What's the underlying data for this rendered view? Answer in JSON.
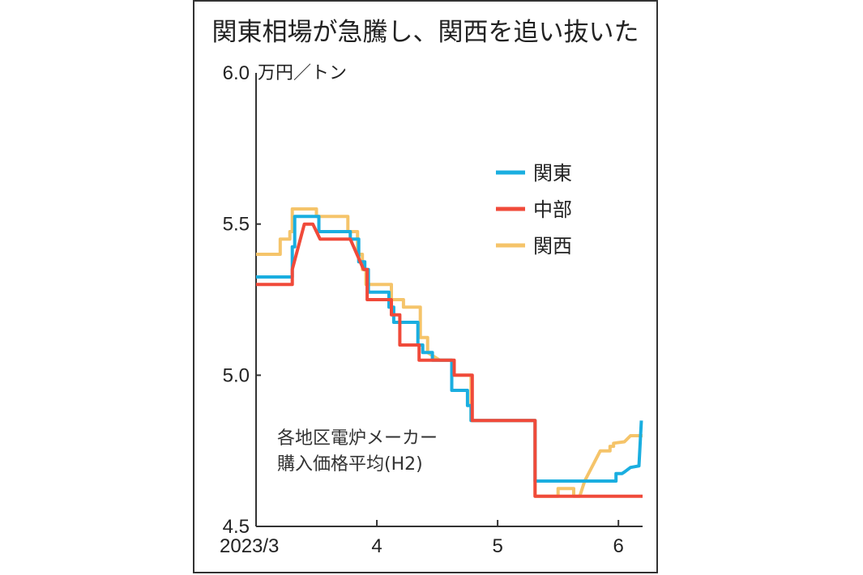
{
  "title": "関東相場が急騰し、関西を追い抜いた",
  "annotation_lines": [
    "各地区電炉メーカー",
    "購入価格平均(H2)"
  ],
  "chart_data": {
    "type": "line",
    "title": "関東相場が急騰し、関西を追い抜いた",
    "ylabel": "万円／トン",
    "xlabel": "",
    "ylim": [
      4.5,
      6.0
    ],
    "xlim": [
      0,
      3.2
    ],
    "y_ticks": [
      "6.0",
      "5.5",
      "5.0",
      "4.5"
    ],
    "y_tick_values": [
      6.0,
      5.5,
      5.0,
      4.5
    ],
    "x_ticks": [
      "2023/3",
      "4",
      "5",
      "6"
    ],
    "x_tick_values": [
      0,
      1,
      2,
      3
    ],
    "grid": false,
    "legend_position": "upper-right",
    "series": [
      {
        "name": "関東",
        "color": "#1aaee0",
        "points": [
          [
            0,
            5.325
          ],
          [
            0.3,
            5.325
          ],
          [
            0.3,
            5.425
          ],
          [
            0.32,
            5.425
          ],
          [
            0.32,
            5.525
          ],
          [
            0.52,
            5.525
          ],
          [
            0.52,
            5.475
          ],
          [
            0.78,
            5.475
          ],
          [
            0.78,
            5.45
          ],
          [
            0.85,
            5.45
          ],
          [
            0.85,
            5.375
          ],
          [
            0.9,
            5.375
          ],
          [
            0.9,
            5.35
          ],
          [
            0.93,
            5.35
          ],
          [
            0.93,
            5.275
          ],
          [
            1.1,
            5.275
          ],
          [
            1.1,
            5.225
          ],
          [
            1.14,
            5.225
          ],
          [
            1.14,
            5.175
          ],
          [
            1.34,
            5.175
          ],
          [
            1.34,
            5.1
          ],
          [
            1.38,
            5.1
          ],
          [
            1.38,
            5.075
          ],
          [
            1.46,
            5.075
          ],
          [
            1.46,
            5.05
          ],
          [
            1.62,
            5.05
          ],
          [
            1.62,
            4.95
          ],
          [
            1.75,
            4.95
          ],
          [
            1.75,
            4.9
          ],
          [
            1.78,
            4.9
          ],
          [
            1.78,
            4.85
          ],
          [
            2.31,
            4.85
          ],
          [
            2.31,
            4.65
          ],
          [
            2.98,
            4.65
          ],
          [
            2.98,
            4.675
          ],
          [
            3.03,
            4.675
          ],
          [
            3.05,
            4.68
          ],
          [
            3.1,
            4.695
          ],
          [
            3.17,
            4.7
          ],
          [
            3.19,
            4.85
          ]
        ]
      },
      {
        "name": "中部",
        "color": "#f04a3a",
        "points": [
          [
            0,
            5.3
          ],
          [
            0.3,
            5.3
          ],
          [
            0.3,
            5.35
          ],
          [
            0.4,
            5.5
          ],
          [
            0.47,
            5.5
          ],
          [
            0.53,
            5.45
          ],
          [
            0.78,
            5.45
          ],
          [
            0.89,
            5.35
          ],
          [
            0.92,
            5.35
          ],
          [
            0.92,
            5.25
          ],
          [
            1.12,
            5.25
          ],
          [
            1.12,
            5.2
          ],
          [
            1.19,
            5.2
          ],
          [
            1.19,
            5.1
          ],
          [
            1.35,
            5.1
          ],
          [
            1.35,
            5.05
          ],
          [
            1.64,
            5.05
          ],
          [
            1.64,
            5.0
          ],
          [
            1.79,
            5.0
          ],
          [
            1.79,
            4.85
          ],
          [
            2.31,
            4.85
          ],
          [
            2.31,
            4.6
          ],
          [
            3.2,
            4.6
          ]
        ]
      },
      {
        "name": "関西",
        "color": "#f5c46a",
        "points": [
          [
            0,
            5.4
          ],
          [
            0.2,
            5.4
          ],
          [
            0.2,
            5.45
          ],
          [
            0.28,
            5.45
          ],
          [
            0.28,
            5.475
          ],
          [
            0.3,
            5.475
          ],
          [
            0.3,
            5.55
          ],
          [
            0.5,
            5.55
          ],
          [
            0.5,
            5.525
          ],
          [
            0.76,
            5.525
          ],
          [
            0.76,
            5.475
          ],
          [
            0.84,
            5.475
          ],
          [
            0.84,
            5.4
          ],
          [
            0.88,
            5.4
          ],
          [
            0.88,
            5.35
          ],
          [
            0.91,
            5.35
          ],
          [
            0.91,
            5.3
          ],
          [
            1.12,
            5.3
          ],
          [
            1.12,
            5.25
          ],
          [
            1.22,
            5.25
          ],
          [
            1.22,
            5.225
          ],
          [
            1.36,
            5.225
          ],
          [
            1.36,
            5.125
          ],
          [
            1.42,
            5.125
          ],
          [
            1.42,
            5.075
          ],
          [
            1.52,
            5.05
          ],
          [
            1.62,
            5.05
          ],
          [
            1.62,
            5.0
          ],
          [
            1.78,
            5.0
          ],
          [
            1.78,
            4.85
          ],
          [
            2.31,
            4.85
          ],
          [
            2.31,
            4.6
          ],
          [
            2.5,
            4.6
          ],
          [
            2.5,
            4.625
          ],
          [
            2.63,
            4.625
          ],
          [
            2.63,
            4.6
          ],
          [
            2.68,
            4.6
          ],
          [
            2.72,
            4.65
          ],
          [
            2.85,
            4.75
          ],
          [
            2.93,
            4.75
          ],
          [
            2.93,
            4.765
          ],
          [
            2.96,
            4.765
          ],
          [
            2.96,
            4.775
          ],
          [
            3.05,
            4.78
          ],
          [
            3.1,
            4.8
          ],
          [
            3.2,
            4.8
          ]
        ]
      }
    ]
  }
}
